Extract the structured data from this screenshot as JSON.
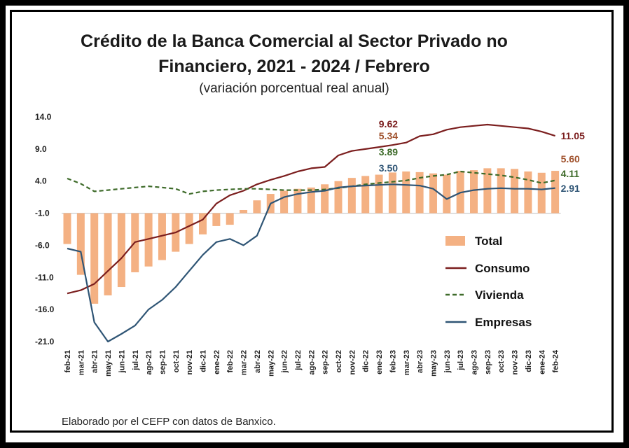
{
  "title_line1": "Crédito de la Banca Comercial al Sector Privado no",
  "title_line2": "Financiero, 2021 - 2024 / Febrero",
  "subtitle": "(variación porcentual real anual)",
  "note": "Elaborado por el CEFP con datos de Banxico.",
  "colors": {
    "total": "#f4b183",
    "consumo": "#7b1e1e",
    "vivienda": "#3e6b2a",
    "empresas": "#2f5575"
  },
  "chart_data": {
    "type": "bar",
    "title": "Crédito de la Banca Comercial al Sector Privado no Financiero, 2021 - 2024 / Febrero",
    "subtitle": "(variación porcentual real anual)",
    "yticks": [
      "14.0",
      "9.0",
      "4.0",
      "-1.0",
      "-6.0",
      "-11.0",
      "-16.0",
      "-21.0"
    ],
    "ylim": [
      -21,
      14
    ],
    "categories": [
      "feb-21",
      "mar-21",
      "abr-21",
      "may-21",
      "jun-21",
      "jul-21",
      "ago-21",
      "sep-21",
      "oct-21",
      "nov-21",
      "dic-21",
      "ene-22",
      "feb-22",
      "mar-22",
      "abr-22",
      "may-22",
      "jun-22",
      "jul-22",
      "ago-22",
      "sep-22",
      "oct-22",
      "nov-22",
      "dic-22",
      "ene-23",
      "feb-23",
      "mar-23",
      "abr-23",
      "may-23",
      "jun-23",
      "jul-23",
      "ago-23",
      "sep-23",
      "oct-23",
      "nov-23",
      "dic-23",
      "ene-24",
      "feb-24"
    ],
    "series": [
      {
        "name": "Total",
        "kind": "bar",
        "values": [
          -5.8,
          -10.6,
          -15.1,
          -13.8,
          -12.5,
          -10.2,
          -9.3,
          -8.3,
          -7.0,
          -5.8,
          -4.3,
          -3.0,
          -2.8,
          -0.5,
          1.0,
          2.0,
          2.5,
          2.8,
          3.0,
          3.5,
          4.0,
          4.5,
          4.8,
          5.0,
          5.34,
          5.5,
          5.4,
          5.2,
          5.0,
          5.6,
          5.7,
          6.0,
          6.0,
          5.9,
          5.5,
          5.3,
          5.6
        ]
      },
      {
        "name": "Consumo",
        "kind": "line",
        "values": [
          -13.5,
          -13.0,
          -12.0,
          -10.0,
          -8.0,
          -5.5,
          -5.0,
          -4.5,
          -4.0,
          -3.0,
          -2.0,
          0.5,
          1.8,
          2.5,
          3.5,
          4.2,
          4.8,
          5.5,
          6.0,
          6.2,
          8.0,
          8.7,
          9.0,
          9.3,
          9.62,
          10.0,
          11.0,
          11.3,
          12.0,
          12.4,
          12.6,
          12.8,
          12.6,
          12.4,
          12.2,
          11.7,
          11.05
        ]
      },
      {
        "name": "Vivienda",
        "kind": "line",
        "values": [
          4.4,
          3.6,
          2.4,
          2.6,
          2.8,
          3.0,
          3.2,
          3.0,
          2.8,
          2.0,
          2.4,
          2.6,
          2.7,
          2.8,
          2.8,
          2.7,
          2.6,
          2.6,
          2.6,
          2.7,
          2.9,
          3.2,
          3.5,
          3.7,
          3.89,
          4.1,
          4.5,
          4.8,
          5.0,
          5.5,
          5.3,
          5.1,
          4.9,
          4.6,
          4.2,
          3.7,
          4.11
        ]
      },
      {
        "name": "Empresas",
        "kind": "line",
        "values": [
          -6.5,
          -7.0,
          -18.0,
          -21.0,
          -19.8,
          -18.5,
          -16.0,
          -14.5,
          -12.5,
          -10.0,
          -7.5,
          -5.5,
          -5.0,
          -6.0,
          -4.5,
          0.5,
          1.5,
          2.0,
          2.3,
          2.5,
          3.0,
          3.2,
          3.3,
          3.4,
          3.5,
          3.4,
          3.3,
          2.8,
          1.2,
          2.2,
          2.6,
          2.8,
          2.9,
          2.8,
          2.8,
          2.7,
          2.91
        ]
      }
    ],
    "labels_at_feb23": {
      "Consumo": "9.62",
      "Total": "5.34",
      "Vivienda": "3.89",
      "Empresas": "3.50"
    },
    "labels_at_feb24": {
      "Consumo": "11.05",
      "Total": "5.60",
      "Vivienda": "4.11",
      "Empresas": "2.91"
    },
    "legend": [
      "Total",
      "Consumo",
      "Vivienda",
      "Empresas"
    ],
    "legend_position": "right-center",
    "grid": false
  }
}
